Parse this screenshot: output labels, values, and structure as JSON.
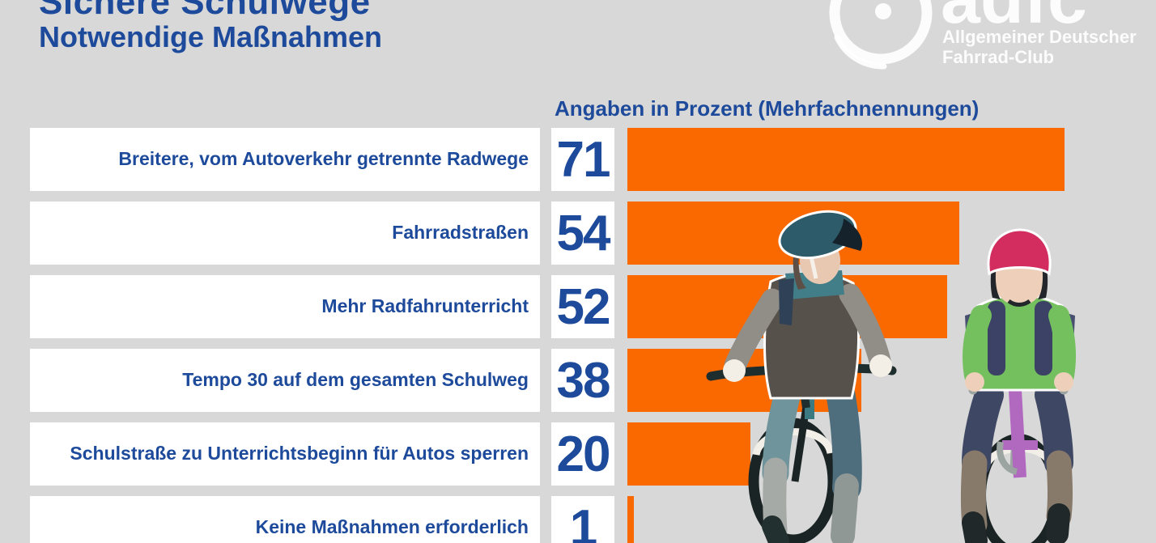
{
  "title": {
    "line1": "Sichere Schulwege",
    "line2": "Notwendige Maßnahmen"
  },
  "logo": {
    "wordmark": "adfc",
    "subtitle_line1": "Allgemeiner Deutscher",
    "subtitle_line2": "Fahrrad-Club"
  },
  "chart_data": {
    "type": "bar",
    "orientation": "horizontal",
    "title": "Sichere Schulwege — Notwendige Maßnahmen",
    "subtitle": "Angaben in Prozent (Mehrfachnennungen)",
    "unit": "Prozent",
    "categories": [
      "Breitere, vom Autoverkehr getrennte Radwege",
      "Fahrradstraßen",
      "Mehr Radfahrunterricht",
      "Tempo 30 auf dem gesamten Schulweg",
      "Schulstraße zu Unterrichtsbeginn für Autos sperren",
      "Keine Maßnahmen erforderlich"
    ],
    "values": [
      71,
      54,
      52,
      38,
      20,
      1
    ],
    "xlim": [
      0,
      100
    ],
    "grid": false,
    "legend": "none",
    "bar_color": "#FA6900",
    "value_label_position": "left-box"
  },
  "colors": {
    "background": "#D8D8D8",
    "bar_orange": "#FA6900",
    "text_blue": "#1D4A9B",
    "box_white": "#FFFFFF",
    "logo_white": "#FFFFFF"
  }
}
